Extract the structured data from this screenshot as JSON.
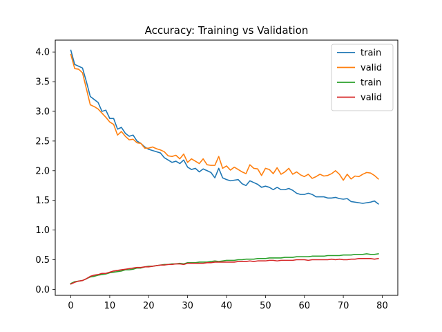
{
  "chart_data": {
    "type": "line",
    "title": "Accuracy: Training vs Validation",
    "xlabel": "",
    "ylabel": "",
    "xlim": [
      -4,
      84
    ],
    "ylim": [
      -0.1,
      4.2
    ],
    "xticks": [
      0,
      10,
      20,
      30,
      40,
      50,
      60,
      70,
      80
    ],
    "yticks": [
      0.0,
      0.5,
      1.0,
      1.5,
      2.0,
      2.5,
      3.0,
      3.5,
      4.0
    ],
    "grid": false,
    "legend": "top-right",
    "x": [
      0,
      1,
      2,
      3,
      4,
      5,
      6,
      7,
      8,
      9,
      10,
      11,
      12,
      13,
      14,
      15,
      16,
      17,
      18,
      19,
      20,
      21,
      22,
      23,
      24,
      25,
      26,
      27,
      28,
      29,
      30,
      31,
      32,
      33,
      34,
      35,
      36,
      37,
      38,
      39,
      40,
      41,
      42,
      43,
      44,
      45,
      46,
      47,
      48,
      49,
      50,
      51,
      52,
      53,
      54,
      55,
      56,
      57,
      58,
      59,
      60,
      61,
      62,
      63,
      64,
      65,
      66,
      67,
      68,
      69,
      70,
      71,
      72,
      73,
      74,
      75,
      76,
      77,
      78,
      79
    ],
    "series": [
      {
        "name": "train",
        "color": "#1f77b4",
        "values": [
          4.03,
          3.79,
          3.76,
          3.73,
          3.5,
          3.25,
          3.2,
          3.15,
          3.0,
          3.02,
          2.88,
          2.88,
          2.7,
          2.73,
          2.63,
          2.58,
          2.6,
          2.5,
          2.46,
          2.4,
          2.36,
          2.34,
          2.32,
          2.3,
          2.22,
          2.18,
          2.14,
          2.16,
          2.12,
          2.18,
          2.06,
          2.02,
          2.04,
          1.98,
          2.03,
          2.0,
          1.97,
          1.88,
          2.04,
          1.88,
          1.85,
          1.83,
          1.84,
          1.85,
          1.78,
          1.75,
          1.83,
          1.8,
          1.77,
          1.72,
          1.74,
          1.72,
          1.68,
          1.72,
          1.68,
          1.68,
          1.7,
          1.67,
          1.62,
          1.6,
          1.6,
          1.62,
          1.6,
          1.56,
          1.56,
          1.56,
          1.54,
          1.54,
          1.55,
          1.53,
          1.52,
          1.53,
          1.48,
          1.47,
          1.46,
          1.45,
          1.46,
          1.47,
          1.49,
          1.44
        ]
      },
      {
        "name": "valid",
        "color": "#ff7f0e",
        "values": [
          3.96,
          3.72,
          3.71,
          3.65,
          3.38,
          3.11,
          3.08,
          3.04,
          2.97,
          2.9,
          2.82,
          2.78,
          2.6,
          2.66,
          2.58,
          2.52,
          2.53,
          2.47,
          2.46,
          2.38,
          2.38,
          2.4,
          2.37,
          2.35,
          2.32,
          2.25,
          2.24,
          2.26,
          2.2,
          2.28,
          2.14,
          2.2,
          2.16,
          2.12,
          2.2,
          2.1,
          2.09,
          2.09,
          2.24,
          2.04,
          2.08,
          2.01,
          2.06,
          2.02,
          1.98,
          1.95,
          2.1,
          2.04,
          2.03,
          1.92,
          2.04,
          2.02,
          1.95,
          2.05,
          1.94,
          1.98,
          2.04,
          1.94,
          1.98,
          1.93,
          1.9,
          1.94,
          1.87,
          1.9,
          1.94,
          1.91,
          1.92,
          1.95,
          2.0,
          1.94,
          1.84,
          1.94,
          1.86,
          1.91,
          1.9,
          1.94,
          1.97,
          1.96,
          1.92,
          1.86
        ]
      },
      {
        "name": "train",
        "color": "#2ca02c",
        "values": [
          0.1,
          0.13,
          0.14,
          0.15,
          0.18,
          0.21,
          0.22,
          0.24,
          0.25,
          0.26,
          0.28,
          0.29,
          0.3,
          0.31,
          0.33,
          0.33,
          0.34,
          0.36,
          0.36,
          0.38,
          0.39,
          0.39,
          0.4,
          0.41,
          0.42,
          0.42,
          0.43,
          0.43,
          0.44,
          0.43,
          0.45,
          0.45,
          0.45,
          0.46,
          0.46,
          0.46,
          0.47,
          0.48,
          0.47,
          0.48,
          0.49,
          0.49,
          0.49,
          0.5,
          0.5,
          0.51,
          0.51,
          0.51,
          0.52,
          0.52,
          0.52,
          0.53,
          0.53,
          0.53,
          0.53,
          0.54,
          0.54,
          0.54,
          0.55,
          0.55,
          0.55,
          0.55,
          0.56,
          0.56,
          0.56,
          0.56,
          0.57,
          0.57,
          0.57,
          0.57,
          0.58,
          0.58,
          0.58,
          0.59,
          0.59,
          0.59,
          0.6,
          0.59,
          0.59,
          0.6
        ]
      },
      {
        "name": "valid",
        "color": "#d62728",
        "values": [
          0.09,
          0.12,
          0.14,
          0.15,
          0.18,
          0.22,
          0.24,
          0.25,
          0.27,
          0.27,
          0.29,
          0.31,
          0.32,
          0.33,
          0.34,
          0.35,
          0.36,
          0.37,
          0.37,
          0.38,
          0.38,
          0.39,
          0.4,
          0.41,
          0.41,
          0.42,
          0.42,
          0.43,
          0.43,
          0.42,
          0.44,
          0.44,
          0.44,
          0.44,
          0.44,
          0.45,
          0.45,
          0.46,
          0.46,
          0.46,
          0.46,
          0.46,
          0.46,
          0.47,
          0.47,
          0.47,
          0.48,
          0.47,
          0.48,
          0.48,
          0.48,
          0.49,
          0.49,
          0.48,
          0.49,
          0.49,
          0.49,
          0.49,
          0.5,
          0.5,
          0.5,
          0.49,
          0.5,
          0.5,
          0.5,
          0.5,
          0.5,
          0.51,
          0.5,
          0.51,
          0.5,
          0.5,
          0.51,
          0.51,
          0.52,
          0.52,
          0.52,
          0.52,
          0.51,
          0.52
        ]
      }
    ]
  }
}
